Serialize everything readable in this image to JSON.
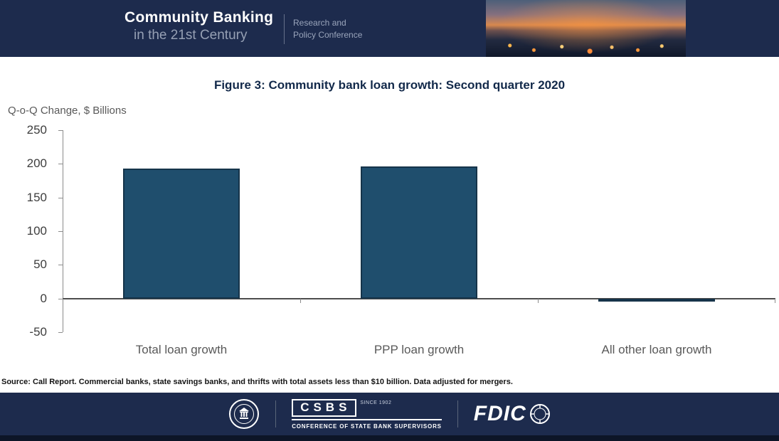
{
  "header": {
    "brand_line1": "Community Banking",
    "brand_line2": "in the 21st Century",
    "conference_line1": "Research and",
    "conference_line2": "Policy Conference"
  },
  "chart_data": {
    "type": "bar",
    "title": "Figure 3: Community bank loan growth: Second quarter 2020",
    "ylabel": "Q-o-Q Change, $ Billions",
    "xlabel": "",
    "categories": [
      "Total loan growth",
      "PPP loan growth",
      "All other loan growth"
    ],
    "values": [
      193,
      196,
      -5
    ],
    "ylim": [
      -50,
      250
    ],
    "yticks": [
      250,
      200,
      150,
      100,
      50,
      0,
      -50
    ],
    "bar_color": "#1F4E6D",
    "bar_border_color": "#16344A",
    "grid": false,
    "legend": "none"
  },
  "source_note": "Source: Call Report. Commercial banks, state savings banks, and thrifts with total assets less than $10 billion. Data adjusted for mergers.",
  "footer": {
    "csbs": "CSBS",
    "csbs_since": "SINCE 1902",
    "csbs_name": "CONFERENCE OF STATE BANK SUPERVISORS",
    "fdic": "FDIC"
  },
  "colors": {
    "header_bg": "#1D2B4D",
    "footer_bg": "#1D2B4D",
    "title_navy": "#12294A"
  }
}
